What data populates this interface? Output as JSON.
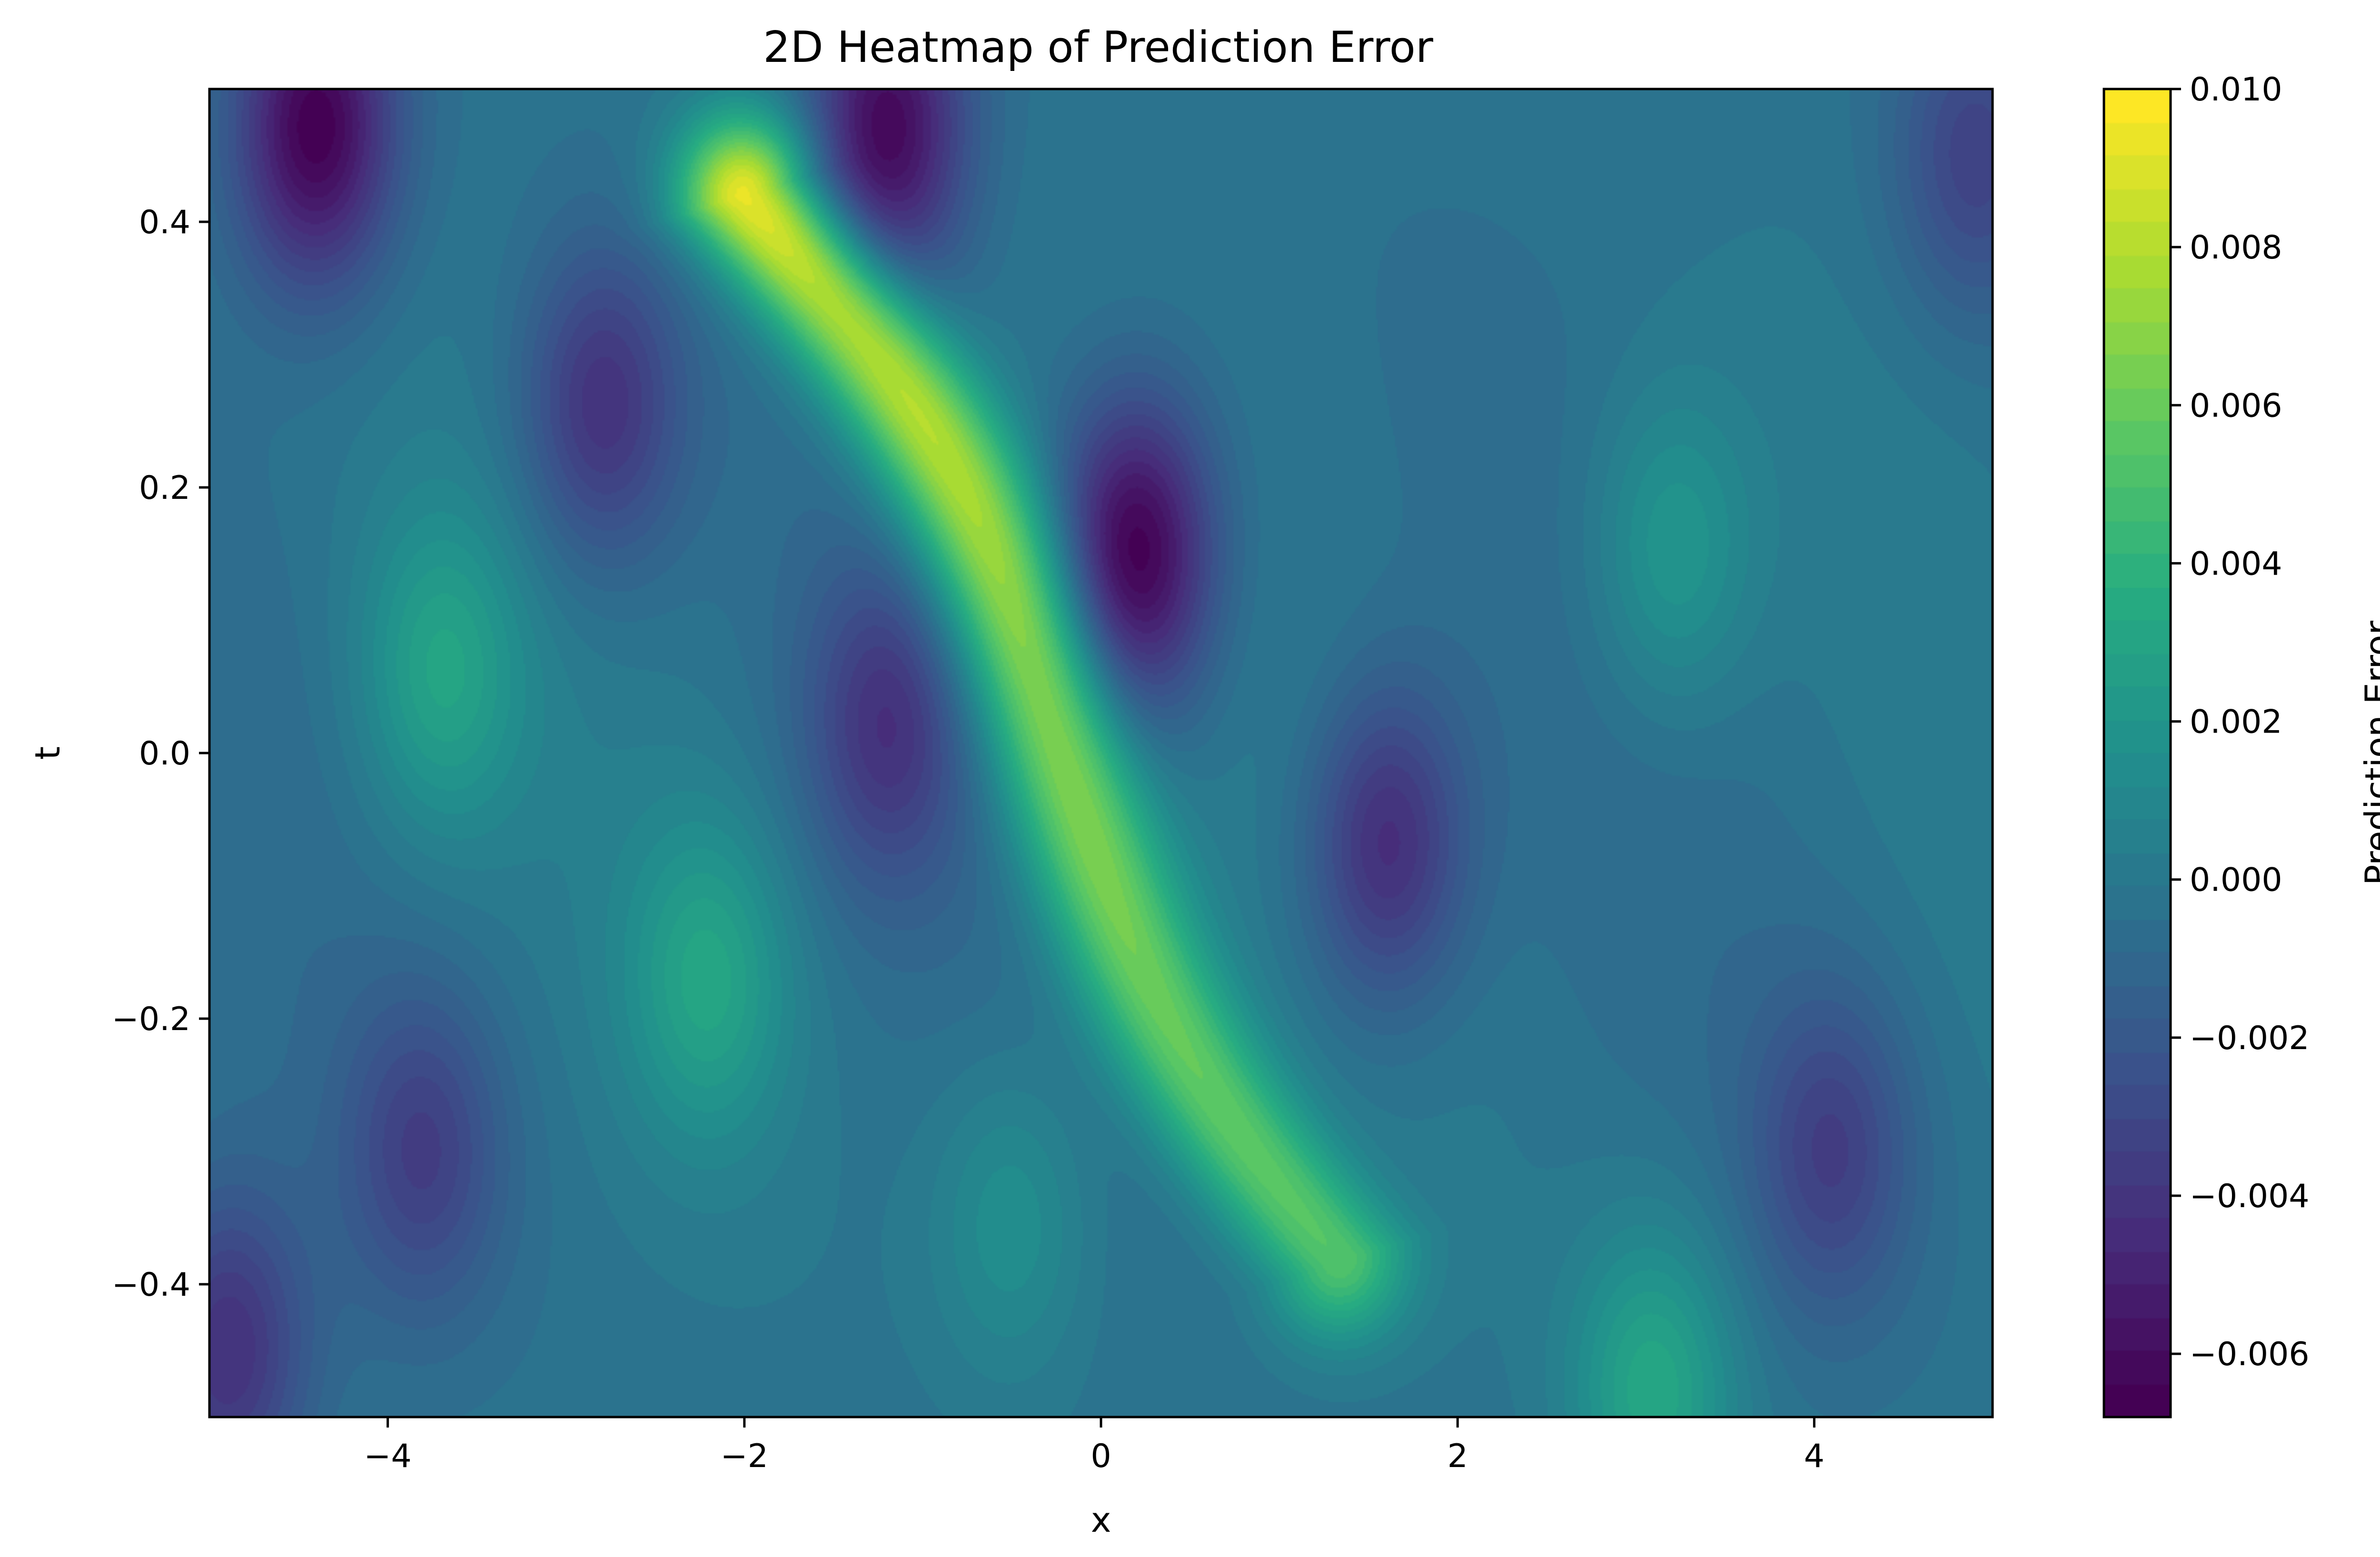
{
  "chart_data": {
    "type": "heatmap",
    "title": "2D Heatmap of Prediction Error",
    "xlabel": "x",
    "ylabel": "t",
    "xlim": [
      -5,
      5
    ],
    "ylim": [
      -0.5,
      0.5
    ],
    "x_ticks": [
      -4,
      -2,
      0,
      2,
      4
    ],
    "x_tick_labels": [
      "−4",
      "−2",
      "0",
      "2",
      "4"
    ],
    "y_ticks": [
      -0.4,
      -0.2,
      0.0,
      0.2,
      0.4
    ],
    "y_tick_labels": [
      "−0.4",
      "−0.2",
      "0.0",
      "0.2",
      "0.4"
    ],
    "colorbar": {
      "label": "Prediction Error",
      "range": [
        -0.0068,
        0.01
      ],
      "ticks": [
        -0.006,
        -0.004,
        -0.002,
        0.0,
        0.002,
        0.004,
        0.006,
        0.008,
        0.01
      ],
      "tick_labels": [
        "−0.006",
        "−0.004",
        "−0.002",
        "0.000",
        "0.002",
        "0.004",
        "0.006",
        "0.008",
        "0.010"
      ],
      "colormap": "viridis"
    },
    "features": [
      {
        "kind": "ridge",
        "x0": -2.0,
        "t0": 0.42,
        "x1": 1.4,
        "t1": -0.38,
        "peak": 0.01
      },
      {
        "kind": "peak",
        "x": 0.2,
        "t": 0.15,
        "value": -0.0068
      },
      {
        "kind": "peak",
        "x": -4.4,
        "t": 0.47,
        "value": -0.0065
      },
      {
        "kind": "peak",
        "x": -1.2,
        "t": 0.47,
        "value": -0.006
      },
      {
        "kind": "peak",
        "x": -2.8,
        "t": 0.26,
        "value": -0.004
      },
      {
        "kind": "peak",
        "x": 1.6,
        "t": -0.07,
        "value": -0.0045
      },
      {
        "kind": "peak",
        "x": -1.2,
        "t": 0.02,
        "value": -0.0035
      },
      {
        "kind": "peak",
        "x": -3.7,
        "t": 0.06,
        "value": 0.003
      },
      {
        "kind": "peak",
        "x": -2.2,
        "t": -0.17,
        "value": 0.003
      },
      {
        "kind": "peak",
        "x": 3.2,
        "t": 0.15,
        "value": 0.0025
      },
      {
        "kind": "peak",
        "x": 3.1,
        "t": -0.48,
        "value": 0.0035
      },
      {
        "kind": "peak",
        "x": -0.5,
        "t": -0.35,
        "value": 0.002
      },
      {
        "kind": "peak",
        "x": -3.8,
        "t": -0.3,
        "value": -0.003
      },
      {
        "kind": "peak",
        "x": 4.1,
        "t": -0.3,
        "value": -0.003
      },
      {
        "kind": "peak",
        "x": 4.9,
        "t": 0.45,
        "value": -0.003
      },
      {
        "kind": "peak",
        "x": -4.9,
        "t": -0.45,
        "value": -0.004
      }
    ]
  }
}
